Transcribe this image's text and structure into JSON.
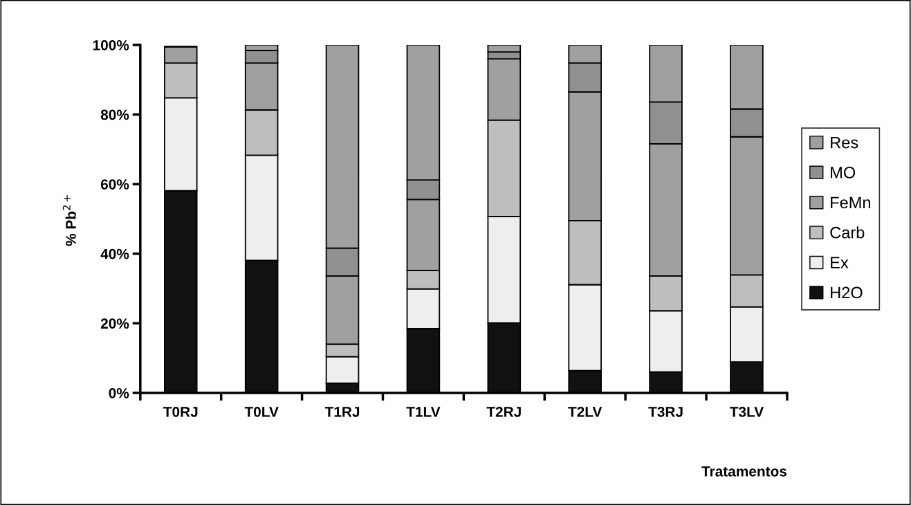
{
  "chart_data": {
    "type": "bar",
    "stacked": true,
    "xlabel": "Tratamentos",
    "ylabel": "% Pb$^{2+}$",
    "categories": [
      "T0RJ",
      "T0LV",
      "T1RJ",
      "T1LV",
      "T2RJ",
      "T2LV",
      "T3RJ",
      "T3LV"
    ],
    "series": [
      {
        "name": "H2O",
        "color": "#111111",
        "values": [
          58.1,
          38.1,
          2.8,
          18.5,
          20.1,
          6.4,
          6.0,
          8.9
        ]
      },
      {
        "name": "Ex",
        "color": "#eeeeee",
        "values": [
          26.7,
          30.2,
          7.6,
          11.4,
          30.6,
          24.7,
          17.6,
          15.8
        ]
      },
      {
        "name": "Carb",
        "color": "#bebebe",
        "values": [
          10.0,
          13.0,
          3.6,
          5.3,
          27.7,
          18.4,
          10.0,
          9.2
        ]
      },
      {
        "name": "FeMn",
        "color": "#a0a0a0",
        "values": [
          4.7,
          13.5,
          19.6,
          20.4,
          17.6,
          37.0,
          38.0,
          39.7
        ]
      },
      {
        "name": "MO",
        "color": "#909090",
        "values": [
          null,
          3.6,
          8.0,
          5.6,
          2.0,
          8.3,
          12.0,
          8.0
        ]
      },
      {
        "name": "Res",
        "color": "#a0a0a0",
        "values": [
          null,
          1.6,
          58.4,
          38.8,
          2.0,
          5.2,
          16.4,
          18.4
        ]
      }
    ],
    "ylim": [
      0,
      100
    ],
    "yticks": [
      {
        "value": 0,
        "label": "0%"
      },
      {
        "value": 20,
        "label": "20%"
      },
      {
        "value": 40,
        "label": "40%"
      },
      {
        "value": 60,
        "label": "60%"
      },
      {
        "value": 80,
        "label": "80%"
      },
      {
        "value": 100,
        "label": "100%"
      }
    ],
    "grid": false,
    "legend": "right"
  }
}
